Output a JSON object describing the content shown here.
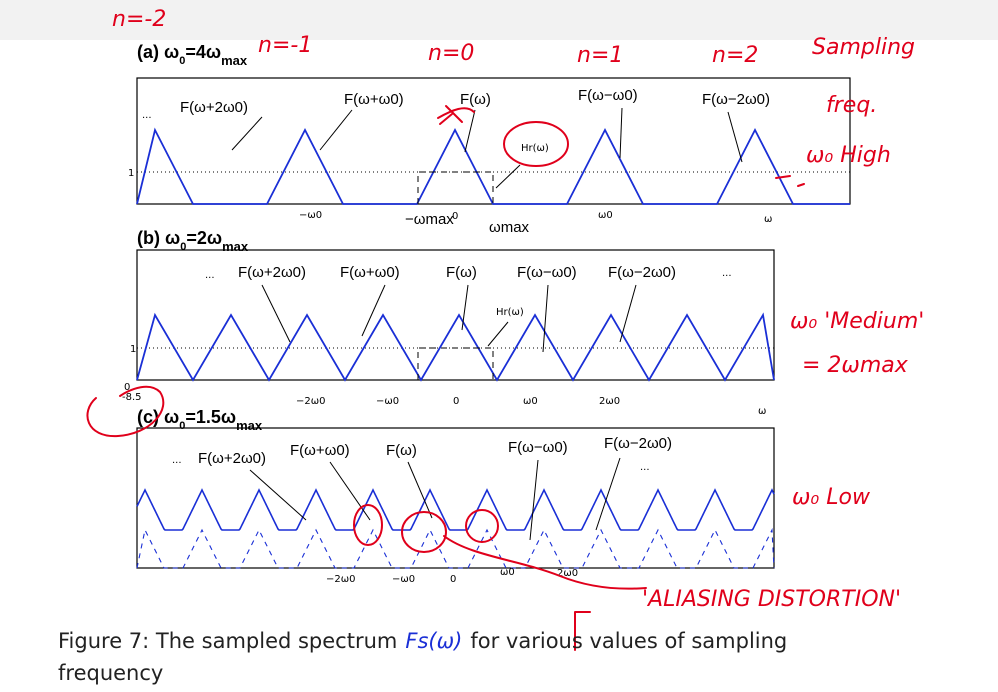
{
  "panels": [
    {
      "title_prefix": "(a) ω",
      "title_sub": "0",
      "title_eq": "=4ω",
      "title_sub2": "max",
      "labels": [
        "F(ω+2ω0)",
        "F(ω+ω0)",
        "F(ω)",
        "F(ω−ω0)",
        "F(ω−2ω0)"
      ],
      "ellipsis": "...",
      "filter_label": "Hr(ω)",
      "level_label": "1",
      "ticks": [
        "−ω0",
        "0",
        "ω0",
        "ω"
      ],
      "ticks_max": [
        "−ωmax",
        "ωmax"
      ]
    },
    {
      "title_prefix": "(b) ω",
      "title_sub": "0",
      "title_eq": "=2ω",
      "title_sub2": "max",
      "labels": [
        "F(ω+2ω0)",
        "F(ω+ω0)",
        "F(ω)",
        "F(ω−ω0)",
        "F(ω−2ω0)"
      ],
      "ellipsis": "...",
      "filter_label": "Hr(ω)",
      "level_label": "1",
      "zero_label": "0",
      "edge_label": "-8.5",
      "ticks": [
        "−2ω0",
        "−ω0",
        "0",
        "ω0",
        "2ω0",
        "ω"
      ]
    },
    {
      "title_prefix": "(c) ω",
      "title_sub": "0",
      "title_eq": "=1.5ω",
      "title_sub2": "max",
      "labels": [
        "F(ω+2ω0)",
        "F(ω+ω0)",
        "F(ω)",
        "F(ω−ω0)",
        "F(ω−2ω0)"
      ],
      "ellipsis": "...",
      "ticks": [
        "−2ω0",
        "−ω0",
        "0",
        "ω0",
        "2ω0"
      ]
    }
  ],
  "annotations": {
    "n_labels": [
      "n=-2",
      "n=-1",
      "n=0",
      "n=1",
      "n=2"
    ],
    "note_a1": "Sampling",
    "note_a2": "freq.",
    "note_a3": "ω₀ High",
    "note_b1": "ω₀ 'Medium'",
    "note_b2": "= 2ωmax",
    "note_c": "ω₀ Low",
    "aliasing": "'ALIASING DISTORTION'"
  },
  "caption": {
    "line1_pre": "Figure 7: The sampled spectrum",
    "symbol": "Fs(ω)",
    "line1_post": "for various values of sampling",
    "line2": "frequency"
  },
  "colors": {
    "spectrum": "#1a2fd6",
    "ink": "#e0001b"
  }
}
